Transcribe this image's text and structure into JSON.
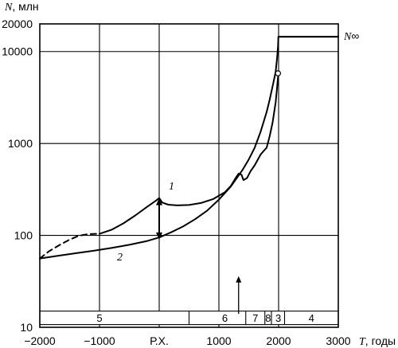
{
  "chart_data": {
    "type": "line",
    "title": "",
    "ylabel_var": "N",
    "ylabel_unit": ", млн",
    "xlabel_var": "T",
    "xlabel_unit": ", годы",
    "y_scale": "log",
    "xlim": [
      -2000,
      3000
    ],
    "ylim": [
      10,
      20000
    ],
    "grid": true,
    "x_ticks": [
      {
        "value": -2000,
        "label": "−2000"
      },
      {
        "value": -1000,
        "label": "−1000"
      },
      {
        "value": 0,
        "label": "Р.Х."
      },
      {
        "value": 1000,
        "label": "1000"
      },
      {
        "value": 2000,
        "label": "2000"
      },
      {
        "value": 3000,
        "label": "3000"
      }
    ],
    "y_ticks": [
      {
        "value": 10,
        "label": "10"
      },
      {
        "value": 100,
        "label": "100"
      },
      {
        "value": 1000,
        "label": "1000"
      },
      {
        "value": 10000,
        "label": "10000"
      },
      {
        "value": 20000,
        "label": "20000"
      }
    ],
    "series": [
      {
        "name": "1",
        "style": "solid",
        "points": [
          [
            -1000,
            104
          ],
          [
            -800,
            115
          ],
          [
            -600,
            135
          ],
          [
            -400,
            165
          ],
          [
            -200,
            205
          ],
          [
            -50,
            240
          ],
          [
            0,
            255
          ],
          [
            50,
            228
          ],
          [
            150,
            216
          ],
          [
            300,
            212
          ],
          [
            500,
            214
          ],
          [
            700,
            225
          ],
          [
            900,
            248
          ],
          [
            1100,
            295
          ],
          [
            1200,
            345
          ],
          [
            1280,
            420
          ],
          [
            1330,
            470
          ],
          [
            1380,
            455
          ],
          [
            1410,
            400
          ],
          [
            1470,
            420
          ],
          [
            1530,
            500
          ],
          [
            1600,
            580
          ],
          [
            1700,
            760
          ],
          [
            1750,
            830
          ],
          [
            1800,
            900
          ],
          [
            1850,
            1200
          ],
          [
            1900,
            1700
          ],
          [
            1950,
            2800
          ],
          [
            1970,
            3800
          ],
          [
            1990,
            5300
          ]
        ]
      },
      {
        "name": "",
        "style": "dashed",
        "points": [
          [
            -2000,
            56
          ],
          [
            -1850,
            67
          ],
          [
            -1650,
            80
          ],
          [
            -1500,
            90
          ],
          [
            -1350,
            99
          ],
          [
            -1200,
            103
          ],
          [
            -1050,
            104
          ]
        ]
      },
      {
        "name": "2",
        "style": "solid",
        "points": [
          [
            -2000,
            56
          ],
          [
            -1700,
            60
          ],
          [
            -1400,
            64
          ],
          [
            -1100,
            68
          ],
          [
            -800,
            73
          ],
          [
            -500,
            79
          ],
          [
            -200,
            87
          ],
          [
            0,
            95
          ],
          [
            200,
            108
          ],
          [
            400,
            125
          ],
          [
            600,
            150
          ],
          [
            800,
            185
          ],
          [
            1000,
            245
          ],
          [
            1200,
            340
          ],
          [
            1400,
            520
          ],
          [
            1500,
            670
          ],
          [
            1600,
            900
          ],
          [
            1700,
            1350
          ],
          [
            1800,
            2200
          ],
          [
            1850,
            3000
          ],
          [
            1900,
            4200
          ],
          [
            1950,
            6000
          ],
          [
            1975,
            8500
          ],
          [
            1990,
            11500
          ],
          [
            1996,
            14500
          ],
          [
            2000,
            14500
          ],
          [
            3000,
            14500
          ]
        ]
      }
    ],
    "asymptote": {
      "value": 14500,
      "label_var": "N",
      "label_sym": "∞"
    },
    "marker_point": {
      "x": 1990,
      "y": 5800
    },
    "range_arrow": {
      "x": 0,
      "y_top": 255,
      "y_bottom": 90
    },
    "tick_arrow": {
      "x": 1330,
      "y_bottom": 14,
      "y_top": 36
    },
    "periods": {
      "band_bottom": 10.7,
      "band_top": 15,
      "dividers": [
        500,
        1450,
        1770,
        1880,
        2100
      ],
      "labels": [
        {
          "label": "5",
          "x": -1000
        },
        {
          "label": "6",
          "x": 1100
        },
        {
          "label": "7",
          "x": 1610
        },
        {
          "label": "8",
          "x": 1825
        },
        {
          "label": "3",
          "x": 1995
        },
        {
          "label": "4",
          "x": 2550
        }
      ]
    }
  }
}
